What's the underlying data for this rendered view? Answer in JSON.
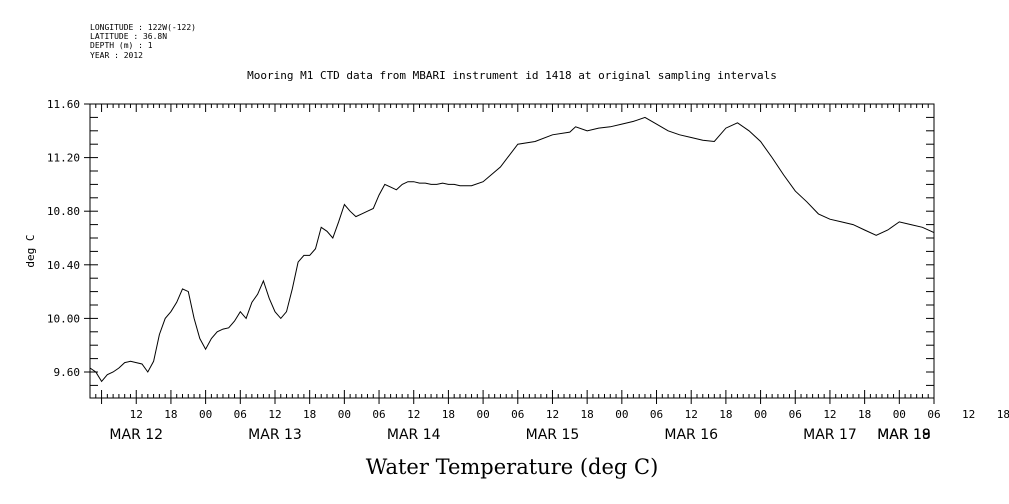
{
  "meta": {
    "longitude": "LONGITUDE : 122W(-122)",
    "latitude": "LATITUDE : 36.8N",
    "depth": "DEPTH (m) : 1",
    "year": "YEAR : 2012"
  },
  "chart_data": {
    "type": "line",
    "title": "Mooring M1 CTD data from MBARI instrument id 1418 at original sampling intervals",
    "xlabel": "Water Temperature (deg C)",
    "ylabel": "deg C",
    "ylim": [
      9.4,
      11.6
    ],
    "yticks": [
      "9.60",
      "10.00",
      "10.40",
      "10.80",
      "11.20",
      "11.60"
    ],
    "x_range_hours": [
      4,
      150
    ],
    "hour_tick_labels": [
      "12",
      "18",
      "00",
      "06",
      "12",
      "18",
      "00",
      "06",
      "12",
      "18",
      "00",
      "06",
      "12",
      "18",
      "00",
      "06",
      "12",
      "18",
      "00",
      "06",
      "12",
      "18",
      "00",
      "06",
      "12",
      "18",
      "00",
      "06"
    ],
    "day_labels": [
      {
        "label": "MAR 12",
        "hour": 12
      },
      {
        "label": "MAR 13",
        "hour": 36
      },
      {
        "label": "MAR 14",
        "hour": 60
      },
      {
        "label": "MAR 15",
        "hour": 84
      },
      {
        "label": "MAR 16",
        "hour": 108
      },
      {
        "label": "MAR 17",
        "hour": 132
      },
      {
        "label": "MAR 18",
        "hour": 156
      },
      {
        "label": "MAR 19",
        "hour": 172
      }
    ],
    "grid": false,
    "series": [
      {
        "x": [
          4,
          5,
          6,
          7,
          8,
          9,
          10,
          11,
          12,
          13,
          14,
          15,
          16,
          17,
          18,
          19,
          20,
          21,
          22,
          23,
          24,
          25,
          26,
          27,
          28,
          29,
          30,
          31,
          32,
          33,
          34,
          35,
          36,
          37,
          38,
          39,
          40,
          41,
          42,
          43,
          44,
          45,
          46,
          47,
          48,
          49,
          50,
          51,
          52,
          53,
          54,
          55,
          56,
          57,
          58,
          59,
          60,
          61,
          62,
          63,
          64,
          65,
          66,
          67,
          68,
          69,
          70,
          72,
          75,
          78,
          81,
          84,
          87,
          88,
          90,
          92,
          94,
          96,
          98,
          100,
          102,
          104,
          106,
          108,
          110,
          112,
          114,
          116,
          118,
          120,
          122,
          124,
          126,
          128,
          130,
          132,
          134,
          136,
          138,
          140,
          142,
          144,
          146,
          148,
          150
        ],
        "y": [
          9.63,
          9.6,
          9.53,
          9.58,
          9.6,
          9.63,
          9.67,
          9.68,
          9.67,
          9.66,
          9.6,
          9.68,
          9.88,
          10.0,
          10.05,
          10.12,
          10.22,
          10.2,
          10.0,
          9.85,
          9.77,
          9.85,
          9.9,
          9.92,
          9.93,
          9.98,
          10.05,
          10.0,
          10.12,
          10.18,
          10.28,
          10.15,
          10.05,
          10.0,
          10.05,
          10.22,
          10.42,
          10.47,
          10.47,
          10.52,
          10.68,
          10.65,
          10.6,
          10.72,
          10.85,
          10.8,
          10.76,
          10.78,
          10.8,
          10.82,
          10.92,
          11.0,
          10.98,
          10.96,
          11.0,
          11.02,
          11.02,
          11.01,
          11.01,
          11.0,
          11.0,
          11.01,
          11.0,
          11.0,
          10.99,
          10.99,
          10.99,
          11.02,
          11.13,
          11.3,
          11.32,
          11.37,
          11.39,
          11.43,
          11.4,
          11.42,
          11.43,
          11.45,
          11.47,
          11.5,
          11.45,
          11.4,
          11.37,
          11.35,
          11.33,
          11.32,
          11.42,
          11.46,
          11.4,
          11.32,
          11.2,
          11.07,
          10.95,
          10.87,
          10.78,
          10.74,
          10.72,
          10.7,
          10.66,
          10.62,
          10.66,
          10.72,
          10.7,
          10.68,
          10.64
        ]
      }
    ]
  }
}
